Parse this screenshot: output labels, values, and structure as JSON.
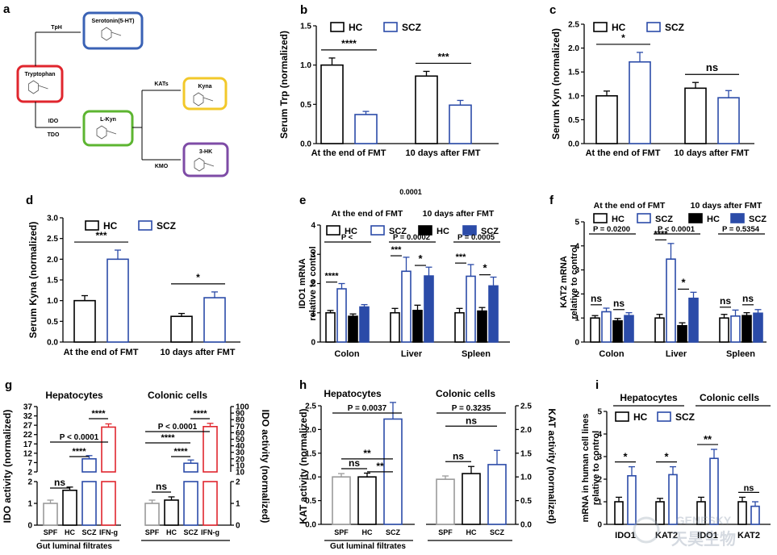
{
  "colors": {
    "hc": "#000000",
    "scz": "#2b4ba8",
    "spf": "#9a9a9a",
    "ifn": "#e0262e",
    "trp_box": "#e0262e",
    "ser_box": "#3a62b5",
    "lkyn_box": "#5db531",
    "kyna_box": "#f2c82a",
    "hk_box": "#7e4ba6"
  },
  "center_label": "0.0001",
  "watermark": {
    "text1": "GENESKY",
    "text2": "天昊生物"
  },
  "panel_a": {
    "letter": "a",
    "nodes": {
      "trp": "Tryptophan",
      "ser": "Serotonin(5-HT)",
      "lkyn": "L-Kyn",
      "kyna": "Kyna",
      "hk": "3-HK"
    },
    "enzymes": {
      "tph": "TpH",
      "ido": "IDO",
      "tdo": "TDO",
      "kats": "KATs",
      "kmo": "KMO"
    }
  },
  "chart_data": [
    {
      "panel": "b",
      "type": "bar",
      "ylabel": "Serum Trp (normalized)",
      "ylim": [
        0,
        1.5
      ],
      "yticks": [
        "0.0",
        "0.5",
        "1.0",
        "1.5"
      ],
      "categories": [
        "At the end of FMT",
        "10 days after FMT"
      ],
      "legend": [
        "HC",
        "SCZ"
      ],
      "series": [
        {
          "name": "HC",
          "values": [
            1.0,
            0.86
          ],
          "err": [
            0.09,
            0.06
          ]
        },
        {
          "name": "SCZ",
          "values": [
            0.37,
            0.49
          ],
          "err": [
            0.04,
            0.06
          ]
        }
      ],
      "annotations": [
        "****",
        "***"
      ]
    },
    {
      "panel": "c",
      "type": "bar",
      "ylabel": "Serum Kyn  (normalized)",
      "ylim": [
        0,
        2.5
      ],
      "yticks": [
        "0.0",
        "0.5",
        "1.0",
        "1.5",
        "2.0",
        "2.5"
      ],
      "categories": [
        "At the end of FMT",
        "10 days after FMT"
      ],
      "legend": [
        "HC",
        "SCZ"
      ],
      "series": [
        {
          "name": "HC",
          "values": [
            1.0,
            1.16
          ],
          "err": [
            0.1,
            0.12
          ]
        },
        {
          "name": "SCZ",
          "values": [
            1.71,
            0.96
          ],
          "err": [
            0.2,
            0.15
          ]
        }
      ],
      "annotations": [
        "*",
        "ns"
      ]
    },
    {
      "panel": "d",
      "type": "bar",
      "ylabel": "Serum Kyna (normalized)",
      "ylim": [
        0,
        3
      ],
      "yticks": [
        "0.0",
        "0.5",
        "1.0",
        "1.5",
        "2.0",
        "2.5",
        "3.0"
      ],
      "categories": [
        "At the end of FMT",
        "10 days after FMT"
      ],
      "legend": [
        "HC",
        "SCZ"
      ],
      "series": [
        {
          "name": "HC",
          "values": [
            1.0,
            0.62
          ],
          "err": [
            0.12,
            0.07
          ]
        },
        {
          "name": "SCZ",
          "values": [
            2.0,
            1.07
          ],
          "err": [
            0.22,
            0.14
          ]
        }
      ],
      "annotations": [
        "***",
        "*"
      ]
    },
    {
      "panel": "e",
      "type": "bar",
      "ylabel": "IDO1 mRNA relative to control",
      "ylim": [
        0,
        4
      ],
      "yticks": [
        "0",
        "1",
        "2",
        "3",
        "4"
      ],
      "categories": [
        "Colon",
        "Liver",
        "Spleen"
      ],
      "headers": [
        "At the end of FMT",
        "10 days after FMT"
      ],
      "legend": [
        "HC",
        "SCZ",
        "HC",
        "SCZ"
      ],
      "series": [
        {
          "name": "HC end",
          "values": [
            1.0,
            1.0,
            1.0
          ],
          "err": [
            0.08,
            0.15,
            0.15
          ]
        },
        {
          "name": "SCZ end",
          "values": [
            1.82,
            2.42,
            2.25
          ],
          "err": [
            0.18,
            0.48,
            0.4
          ]
        },
        {
          "name": "HC 10d",
          "values": [
            0.88,
            1.08,
            1.06
          ],
          "err": [
            0.08,
            0.18,
            0.12
          ]
        },
        {
          "name": "SCZ 10d",
          "values": [
            1.2,
            2.26,
            1.92
          ],
          "err": [
            0.08,
            0.3,
            0.3
          ]
        }
      ],
      "pvalues": [
        "P <",
        "P = 0.0002",
        "P = 0.0005"
      ],
      "annotations": [
        "****",
        "***",
        "*",
        "***",
        "*"
      ]
    },
    {
      "panel": "f",
      "type": "bar",
      "ylabel": "KAT2 mRNA relative to control",
      "ylim": [
        0,
        5
      ],
      "yticks": [
        "0",
        "1",
        "2",
        "3",
        "4",
        "5"
      ],
      "categories": [
        "Colon",
        "Liver",
        "Spleen"
      ],
      "headers": [
        "At the end of FMT",
        "10 days after FMT"
      ],
      "legend": [
        "HC",
        "SCZ",
        "HC",
        "SCZ"
      ],
      "series": [
        {
          "name": "HC end",
          "values": [
            1.0,
            1.0,
            1.0
          ],
          "err": [
            0.1,
            0.15,
            0.15
          ]
        },
        {
          "name": "SCZ end",
          "values": [
            1.26,
            3.45,
            1.08
          ],
          "err": [
            0.15,
            0.65,
            0.25
          ]
        },
        {
          "name": "HC 10d",
          "values": [
            0.88,
            0.68,
            1.1
          ],
          "err": [
            0.1,
            0.12,
            0.12
          ]
        },
        {
          "name": "SCZ 10d",
          "values": [
            1.1,
            1.82,
            1.2
          ],
          "err": [
            0.12,
            0.25,
            0.15
          ]
        }
      ],
      "pvalues": [
        "P = 0.0200",
        "P < 0.0001",
        "P = 0.5354"
      ],
      "annotations": [
        "ns",
        "ns",
        "****",
        "*",
        "ns",
        "ns"
      ]
    },
    {
      "panel": "g",
      "type": "bar",
      "ylabel": "IDO activity (normalized)",
      "ylabel_right": "IDO activity (normalized)",
      "groups": [
        "Hepatocytes",
        "Colonic cells"
      ],
      "categories": [
        "SPF",
        "HC",
        "SCZ",
        "IFN-g"
      ],
      "xlabel": "Gut luminal filtrates",
      "yticks_bottom": [
        "0",
        "1",
        "2"
      ],
      "yticks_top": [
        "2",
        "7",
        "12",
        "17",
        "22",
        "27",
        "32",
        "37"
      ],
      "yticks_right": [
        "0",
        "1",
        "2",
        "10",
        "20",
        "30",
        "40",
        "50",
        "60",
        "70",
        "80",
        "90",
        "100"
      ],
      "series": [
        {
          "name": "Hepatocytes",
          "values": [
            1.0,
            1.6,
            9.0,
            26.0
          ]
        },
        {
          "name": "Colonic cells",
          "values": [
            1.0,
            1.15,
            15.0,
            70.0
          ]
        }
      ],
      "pvalues": [
        "P < 0.0001",
        "P < 0.0001"
      ],
      "annotations": [
        "ns",
        "****",
        "****",
        "ns",
        "****",
        "****"
      ]
    },
    {
      "panel": "h",
      "type": "bar",
      "ylabel": "KAT activity (normalized)",
      "ylabel_right": "KAT activity (normalized)",
      "groups": [
        "Hepatocytes",
        "Colonic cells"
      ],
      "categories": [
        "SPF",
        "HC",
        "SCZ"
      ],
      "xlabel": "Gut luminal filtrates",
      "ylim": [
        0,
        2.5
      ],
      "yticks": [
        "0.0",
        "0.5",
        "1.0",
        "1.5",
        "2.0",
        "2.5"
      ],
      "series": [
        {
          "name": "Hepatocytes",
          "values": [
            1.0,
            1.0,
            2.22
          ],
          "err": [
            0.07,
            0.08,
            0.35
          ]
        },
        {
          "name": "Colonic cells",
          "values": [
            0.95,
            1.07,
            1.26
          ],
          "err": [
            0.07,
            0.15,
            0.3
          ]
        }
      ],
      "pvalues": [
        "P = 0.0037",
        "P = 0.3235"
      ],
      "annotations": [
        "ns",
        "**",
        "**",
        "ns",
        "ns"
      ]
    },
    {
      "panel": "i",
      "type": "bar",
      "ylabel": "mRNA in human cell lines relative to control",
      "ylim": [
        0,
        5
      ],
      "yticks": [
        "0",
        "1",
        "2",
        "3",
        "4",
        "5"
      ],
      "categories": [
        "IDO1",
        "KAT2",
        "IDO1",
        "KAT2"
      ],
      "groups": [
        "Hepatocytes",
        "Colonic cells"
      ],
      "legend": [
        "HC",
        "SCZ"
      ],
      "series": [
        {
          "name": "HC",
          "values": [
            1.0,
            1.0,
            1.0,
            1.0
          ],
          "err": [
            0.2,
            0.15,
            0.2,
            0.2
          ]
        },
        {
          "name": "SCZ",
          "values": [
            2.15,
            2.2,
            2.92,
            0.8
          ],
          "err": [
            0.4,
            0.35,
            0.4,
            0.2
          ]
        }
      ],
      "annotations": [
        "*",
        "*",
        "**",
        "ns"
      ]
    }
  ]
}
